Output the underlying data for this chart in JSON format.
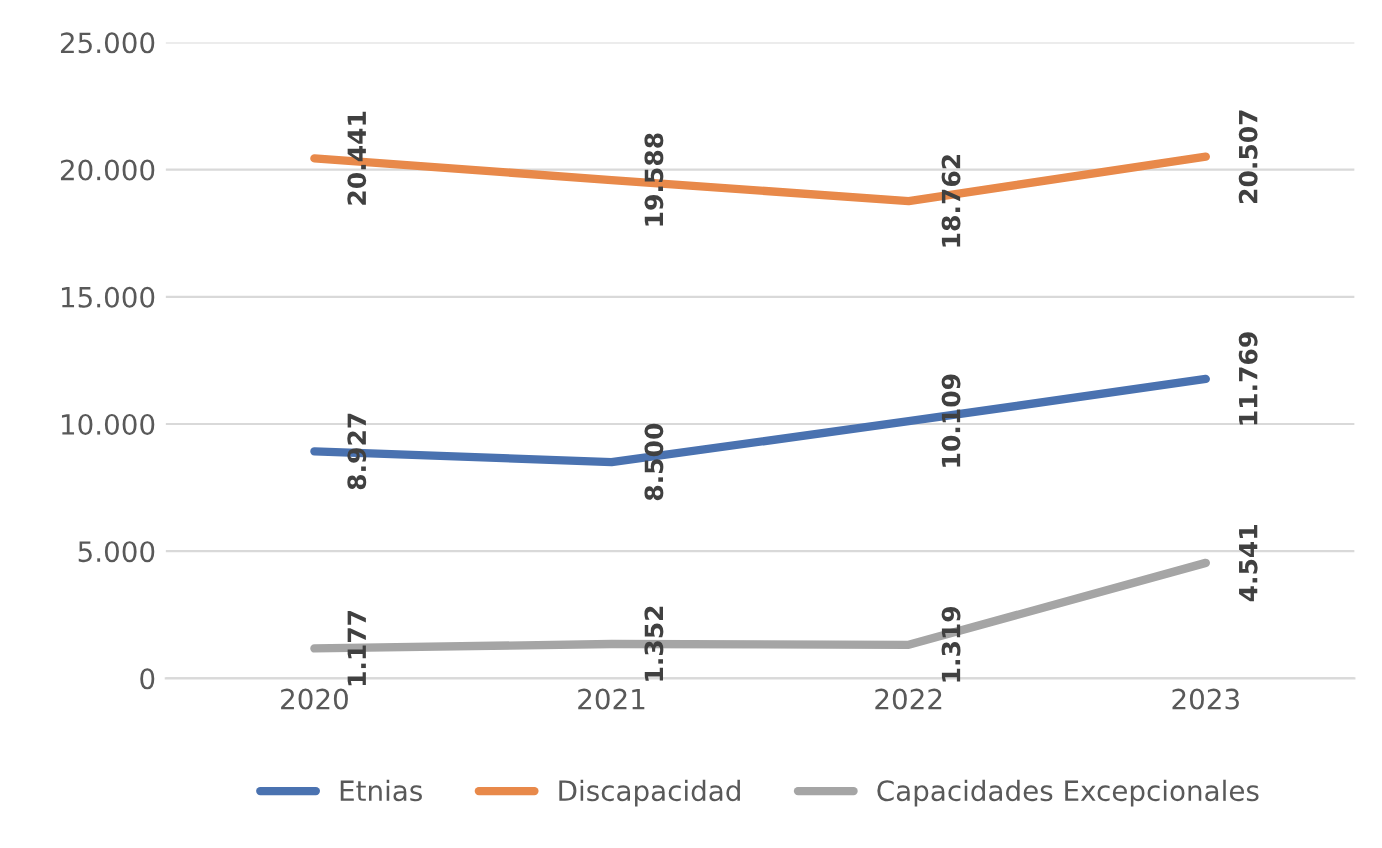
{
  "chart_data": {
    "type": "line",
    "categories": [
      "2020",
      "2021",
      "2022",
      "2023"
    ],
    "series": [
      {
        "name": "Etnias",
        "color": "#4a72b0",
        "values": [
          8927,
          8500,
          10109,
          11769
        ],
        "value_labels": [
          "8.927",
          "8.500",
          "10.109",
          "11.769"
        ]
      },
      {
        "name": "Discapacidad",
        "color": "#e8894a",
        "values": [
          20441,
          19588,
          18762,
          20507
        ],
        "value_labels": [
          "20.441",
          "19.588",
          "18.762",
          "20.507"
        ]
      },
      {
        "name": "Capacidades Excepcionales",
        "color": "#a5a5a5",
        "values": [
          1177,
          1352,
          1319,
          4541
        ],
        "value_labels": [
          "1.177",
          "1.352",
          "1.319",
          "4.541"
        ]
      }
    ],
    "ylim": [
      0,
      25000
    ],
    "yticks": [
      {
        "value": 0,
        "label": "0"
      },
      {
        "value": 5000,
        "label": "5.000"
      },
      {
        "value": 10000,
        "label": "10.000"
      },
      {
        "value": 15000,
        "label": "15.000"
      },
      {
        "value": 20000,
        "label": "20.000"
      },
      {
        "value": 25000,
        "label": "25.000"
      }
    ],
    "grid": "y",
    "legend": "bottom",
    "marker": "none",
    "line_style": "solid"
  }
}
